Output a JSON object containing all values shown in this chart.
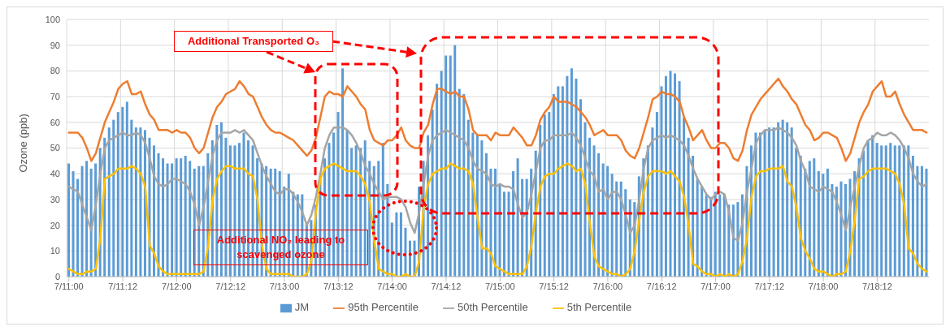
{
  "chart_data": {
    "type": "bar",
    "ylabel": "Ozone (ppb)",
    "ylim": [
      0,
      100
    ],
    "yticks": [
      0,
      10,
      20,
      30,
      40,
      50,
      60,
      70,
      80,
      90,
      100
    ],
    "categories": [
      "7/11:00",
      null,
      null,
      null,
      null,
      null,
      null,
      null,
      null,
      null,
      null,
      null,
      "7/11:12",
      null,
      null,
      null,
      null,
      null,
      null,
      null,
      null,
      null,
      null,
      null,
      "7/12:00",
      null,
      null,
      null,
      null,
      null,
      null,
      null,
      null,
      null,
      null,
      null,
      "7/12:12",
      null,
      null,
      null,
      null,
      null,
      null,
      null,
      null,
      null,
      null,
      null,
      "7/13:00",
      null,
      null,
      null,
      null,
      null,
      null,
      null,
      null,
      null,
      null,
      null,
      "7/13:12",
      null,
      null,
      null,
      null,
      null,
      null,
      null,
      null,
      null,
      null,
      null,
      "7/14:00",
      null,
      null,
      null,
      null,
      null,
      null,
      null,
      null,
      null,
      null,
      null,
      "7/14:12",
      null,
      null,
      null,
      null,
      null,
      null,
      null,
      null,
      null,
      null,
      null,
      "7/15:00",
      null,
      null,
      null,
      null,
      null,
      null,
      null,
      null,
      null,
      null,
      null,
      "7/15:12",
      null,
      null,
      null,
      null,
      null,
      null,
      null,
      null,
      null,
      null,
      null,
      "7/16:00",
      null,
      null,
      null,
      null,
      null,
      null,
      null,
      null,
      null,
      null,
      null,
      "7/16:12",
      null,
      null,
      null,
      null,
      null,
      null,
      null,
      null,
      null,
      null,
      null,
      "7/17:00",
      null,
      null,
      null,
      null,
      null,
      null,
      null,
      null,
      null,
      null,
      null,
      "7/17:12",
      null,
      null,
      null,
      null,
      null,
      null,
      null,
      null,
      null,
      null,
      null,
      "7/18:00",
      null,
      null,
      null,
      null,
      null,
      null,
      null,
      null,
      null,
      null,
      null,
      "7/18:12",
      null,
      null,
      null,
      null,
      null,
      null,
      null,
      null,
      null,
      null,
      null
    ],
    "series": [
      {
        "name": "JM",
        "color": "#5b9bd5",
        "values": [
          44,
          41,
          38,
          43,
          45,
          42,
          44,
          50,
          54,
          58,
          61,
          64,
          66,
          68,
          61,
          58,
          58,
          57,
          54,
          51,
          48,
          46,
          44,
          44,
          46,
          46,
          47,
          45,
          42,
          43,
          43,
          48,
          53,
          59,
          60,
          54,
          51,
          51,
          52,
          56,
          53,
          51,
          46,
          44,
          43,
          42,
          42,
          41,
          35,
          40,
          33,
          32,
          32,
          21,
          22,
          28,
          38,
          46,
          52,
          56,
          64,
          81,
          57,
          50,
          51,
          50,
          53,
          45,
          43,
          45,
          52,
          36,
          21,
          25,
          25,
          19,
          14,
          14,
          35,
          45,
          55,
          65,
          75,
          80,
          86,
          86,
          90,
          73,
          71,
          61,
          56,
          55,
          53,
          48,
          42,
          42,
          36,
          33,
          33,
          41,
          46,
          38,
          38,
          42,
          49,
          59,
          63,
          64,
          71,
          74,
          74,
          78,
          81,
          77,
          69,
          60,
          54,
          51,
          48,
          44,
          43,
          40,
          37,
          37,
          34,
          30,
          29,
          39,
          46,
          51,
          58,
          64,
          74,
          78,
          80,
          79,
          76,
          62,
          54,
          47,
          38,
          35,
          32,
          31,
          33,
          32,
          32,
          28,
          28,
          29,
          32,
          43,
          51,
          56,
          56,
          57,
          58,
          58,
          60,
          61,
          60,
          58,
          50,
          47,
          42,
          45,
          46,
          41,
          40,
          42,
          36,
          35,
          37,
          36,
          38,
          41,
          46,
          49,
          53,
          55,
          52,
          51,
          51,
          52,
          51,
          51,
          51,
          51,
          47,
          43,
          43,
          42
        ]
      },
      {
        "name": "95th Percentile",
        "type": "line",
        "color": "#ed7d31",
        "values": [
          56,
          56,
          56,
          54,
          50,
          45,
          48,
          54,
          60,
          64,
          68,
          73,
          75,
          76,
          71,
          71,
          72,
          67,
          63,
          61,
          57,
          57,
          57,
          56,
          57,
          56,
          56,
          54,
          50,
          48,
          50,
          56,
          62,
          66,
          68,
          71,
          72,
          73,
          76,
          74,
          71,
          70,
          66,
          62,
          59,
          57,
          56,
          56,
          55,
          54,
          53,
          51,
          49,
          47,
          49,
          54,
          62,
          70,
          72,
          71,
          71,
          70,
          74,
          72,
          70,
          67,
          65,
          57,
          53,
          52,
          51,
          53,
          53,
          55,
          58,
          53,
          51,
          50,
          50,
          56,
          59,
          67,
          73,
          73,
          72,
          71,
          72,
          70,
          70,
          65,
          57,
          55,
          55,
          55,
          53,
          56,
          55,
          55,
          55,
          58,
          56,
          54,
          51,
          51,
          55,
          61,
          64,
          66,
          70,
          68,
          68,
          68,
          67,
          66,
          64,
          62,
          59,
          55,
          56,
          57,
          55,
          55,
          55,
          53,
          49,
          47,
          46,
          50,
          56,
          62,
          69,
          70,
          72,
          71,
          71,
          70,
          68,
          62,
          58,
          53,
          55,
          57,
          53,
          50,
          50,
          52,
          52,
          50,
          46,
          45,
          49,
          57,
          63,
          66,
          69,
          71,
          73,
          75,
          77,
          74,
          72,
          69,
          67,
          63,
          59,
          57,
          53,
          54,
          56,
          56,
          55,
          54,
          50,
          45,
          48,
          54,
          60,
          64,
          67,
          72,
          74,
          76,
          70,
          70,
          72,
          67,
          63,
          60,
          57,
          57,
          57,
          56
        ]
      },
      {
        "name": "50th Percentile",
        "type": "line",
        "color": "#a5a5a5",
        "values": [
          35,
          34,
          33,
          28,
          23,
          18,
          28,
          40,
          50,
          53,
          54,
          55,
          56,
          55,
          55,
          56,
          55,
          52,
          46,
          39,
          36,
          35,
          36,
          38,
          38,
          37,
          36,
          33,
          28,
          20,
          27,
          37,
          47,
          53,
          56,
          56,
          56,
          57,
          56,
          57,
          55,
          53,
          48,
          43,
          39,
          36,
          33,
          32,
          34,
          34,
          32,
          29,
          25,
          20,
          24,
          31,
          40,
          50,
          55,
          58,
          58,
          58,
          57,
          55,
          52,
          48,
          43,
          40,
          36,
          33,
          30,
          31,
          31,
          31,
          30,
          27,
          21,
          17,
          25,
          36,
          47,
          53,
          55,
          56,
          57,
          56,
          55,
          54,
          53,
          50,
          45,
          42,
          41,
          40,
          36,
          35,
          36,
          35,
          35,
          34,
          28,
          23,
          25,
          32,
          41,
          50,
          53,
          53,
          55,
          55,
          55,
          55,
          56,
          54,
          51,
          46,
          41,
          39,
          33,
          34,
          30,
          33,
          33,
          30,
          24,
          17,
          20,
          30,
          42,
          50,
          53,
          54,
          55,
          54,
          55,
          54,
          53,
          51,
          47,
          42,
          38,
          35,
          32,
          30,
          32,
          33,
          32,
          25,
          15,
          14,
          21,
          33,
          42,
          52,
          55,
          57,
          57,
          57,
          58,
          57,
          56,
          54,
          51,
          45,
          41,
          35,
          34,
          33,
          35,
          34,
          33,
          29,
          24,
          18,
          27,
          35,
          43,
          50,
          53,
          54,
          56,
          55,
          55,
          56,
          55,
          53,
          50,
          46,
          40,
          37,
          35,
          36
        ]
      },
      {
        "name": "5th Percentile",
        "type": "line",
        "color": "#ffc000",
        "values": [
          3,
          2,
          1,
          1,
          2,
          2,
          3,
          15,
          38,
          39,
          40,
          42,
          42,
          42,
          43,
          42,
          40,
          35,
          12,
          9,
          4,
          2,
          1,
          1,
          1,
          1,
          1,
          1,
          1,
          1,
          2,
          12,
          30,
          38,
          41,
          43,
          43,
          42,
          42,
          42,
          40,
          39,
          30,
          12,
          3,
          1,
          1,
          1,
          1,
          1,
          0,
          0,
          0,
          1,
          6,
          25,
          38,
          42,
          43,
          44,
          43,
          42,
          41,
          41,
          41,
          39,
          36,
          29,
          14,
          3,
          2,
          1,
          1,
          0,
          0,
          1,
          0,
          0,
          6,
          27,
          36,
          40,
          41,
          42,
          42,
          44,
          43,
          42,
          42,
          41,
          36,
          23,
          11,
          11,
          9,
          4,
          3,
          2,
          1,
          1,
          1,
          1,
          4,
          12,
          25,
          35,
          39,
          40,
          40,
          42,
          43,
          44,
          43,
          41,
          42,
          36,
          21,
          8,
          4,
          3,
          2,
          1,
          1,
          0,
          1,
          3,
          10,
          22,
          33,
          39,
          41,
          41,
          41,
          40,
          41,
          39,
          37,
          31,
          20,
          5,
          4,
          2,
          1,
          1,
          0,
          1,
          0,
          1,
          0,
          1,
          6,
          15,
          31,
          39,
          41,
          41,
          42,
          42,
          42,
          43,
          37,
          35,
          27,
          15,
          10,
          7,
          3,
          2,
          2,
          1,
          0,
          1,
          1,
          2,
          10,
          22,
          38,
          39,
          41,
          42,
          42,
          42,
          42,
          41,
          40,
          36,
          28,
          11,
          9,
          5,
          3,
          2
        ]
      }
    ],
    "grid": true,
    "legend": "bottom",
    "marker": "none",
    "line_style": "solid",
    "annotations": [
      "Additional Transported O₃",
      "Additional NO₂ leading to scavenged ozone"
    ]
  }
}
